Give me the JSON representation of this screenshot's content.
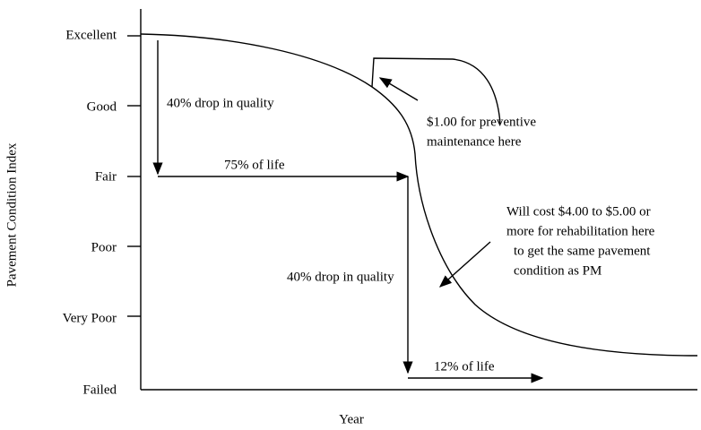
{
  "y_axis": {
    "label": "Pavement Condition Index",
    "levels": [
      "Excellent",
      "Good",
      "Fair",
      "Poor",
      "Very Poor",
      "Failed"
    ]
  },
  "x_axis": {
    "label": "Year"
  },
  "annotations": {
    "first_drop": "40% drop in quality",
    "first_life": "75% of life",
    "pm_cost": [
      "$1.00 for preventive",
      "maintenance here"
    ],
    "rehab_cost": [
      "Will cost $4.00 to $5.00 or",
      "more for rehabilitation here",
      "to get the same pavement",
      "condition as PM"
    ],
    "second_drop": "40% drop in quality",
    "second_life": "12% of life"
  }
}
